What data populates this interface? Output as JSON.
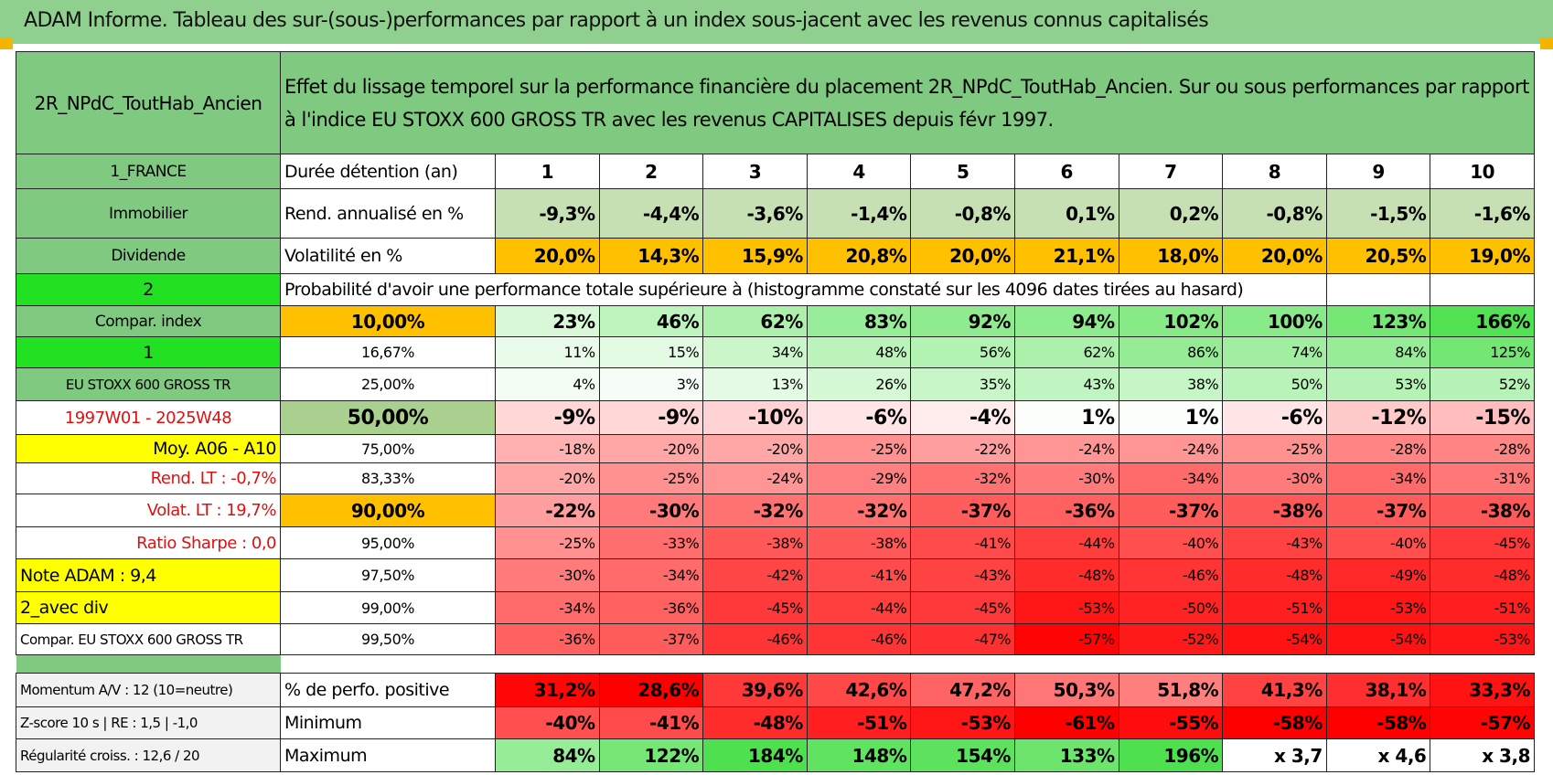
{
  "title": "ADAM Informe. Tableau des sur-(sous-)performances par rapport à un index sous-jacent avec les revenus connus capitalisés",
  "header": {
    "fund": "2R_NPdC_ToutHab_Ancien",
    "description": "Effet du lissage temporel sur la performance financière du placement 2R_NPdC_ToutHab_Ancien. Sur ou sous performances par rapport à l'indice EU STOXX 600 GROSS TR avec les revenus CAPITALISES depuis févr 1997."
  },
  "side": [
    "1_FRANCE",
    "Immobilier",
    "Dividende",
    "2",
    "Compar. index",
    "1",
    "EU STOXX 600 GROSS TR",
    "1997W01 - 2025W48",
    "Moy. A06 - A10",
    "Rend. LT :    -0,7%",
    "Volat. LT :   19,7%",
    "Ratio Sharpe :    0,0",
    "Note ADAM : 9,4",
    "2_avec div",
    "Compar. EU STOXX 600 GROSS TR"
  ],
  "stats": [
    {
      "label": "Durée détention (an)",
      "values": [
        "1",
        "2",
        "3",
        "4",
        "5",
        "6",
        "7",
        "8",
        "9",
        "10"
      ]
    },
    {
      "label": "Rend. annualisé en %",
      "values": [
        "-9,3%",
        "-4,4%",
        "-3,6%",
        "-1,4%",
        "-0,8%",
        "0,1%",
        "0,2%",
        "-0,8%",
        "-1,5%",
        "-1,6%"
      ]
    },
    {
      "label": "Volatilité en %",
      "values": [
        "20,0%",
        "14,3%",
        "15,9%",
        "20,8%",
        "20,0%",
        "21,1%",
        "18,0%",
        "20,0%",
        "20,5%",
        "19,0%"
      ]
    }
  ],
  "probability_title": "Probabilité d'avoir une performance totale supérieure à (histogramme constaté sur les 4096 dates tirées au hasard)",
  "quantiles": [
    {
      "label": "10,00%",
      "values": [
        "23%",
        "46%",
        "62%",
        "83%",
        "92%",
        "94%",
        "102%",
        "100%",
        "123%",
        "166%"
      ]
    },
    {
      "label": "16,67%",
      "values": [
        "11%",
        "15%",
        "34%",
        "48%",
        "56%",
        "62%",
        "86%",
        "74%",
        "84%",
        "125%"
      ]
    },
    {
      "label": "25,00%",
      "values": [
        "4%",
        "3%",
        "13%",
        "26%",
        "35%",
        "43%",
        "38%",
        "50%",
        "53%",
        "52%"
      ]
    },
    {
      "label": "50,00%",
      "values": [
        "-9%",
        "-9%",
        "-10%",
        "-6%",
        "-4%",
        "1%",
        "1%",
        "-6%",
        "-12%",
        "-15%"
      ]
    },
    {
      "label": "75,00%",
      "values": [
        "-18%",
        "-20%",
        "-20%",
        "-25%",
        "-22%",
        "-24%",
        "-24%",
        "-25%",
        "-28%",
        "-28%"
      ]
    },
    {
      "label": "83,33%",
      "values": [
        "-20%",
        "-25%",
        "-24%",
        "-29%",
        "-32%",
        "-30%",
        "-34%",
        "-30%",
        "-34%",
        "-31%"
      ]
    },
    {
      "label": "90,00%",
      "values": [
        "-22%",
        "-30%",
        "-32%",
        "-32%",
        "-37%",
        "-36%",
        "-37%",
        "-38%",
        "-37%",
        "-38%"
      ]
    },
    {
      "label": "95,00%",
      "values": [
        "-25%",
        "-33%",
        "-38%",
        "-38%",
        "-41%",
        "-44%",
        "-40%",
        "-43%",
        "-40%",
        "-45%"
      ]
    },
    {
      "label": "97,50%",
      "values": [
        "-30%",
        "-34%",
        "-42%",
        "-41%",
        "-43%",
        "-48%",
        "-46%",
        "-48%",
        "-49%",
        "-48%"
      ]
    },
    {
      "label": "99,00%",
      "values": [
        "-34%",
        "-36%",
        "-45%",
        "-44%",
        "-45%",
        "-53%",
        "-50%",
        "-51%",
        "-53%",
        "-51%"
      ]
    },
    {
      "label": "99,50%",
      "values": [
        "-36%",
        "-37%",
        "-46%",
        "-46%",
        "-47%",
        "-57%",
        "-52%",
        "-54%",
        "-54%",
        "-53%"
      ]
    }
  ],
  "bottom": [
    {
      "side": "Momentum A/V : 12 (10=neutre)",
      "label": "% de perfo. positive",
      "values": [
        "31,2%",
        "28,6%",
        "39,6%",
        "42,6%",
        "47,2%",
        "50,3%",
        "51,8%",
        "41,3%",
        "38,1%",
        "33,3%"
      ]
    },
    {
      "side": "Z-score 10 s | RE : 1,5 | -1,0",
      "label": "Minimum",
      "values": [
        "-40%",
        "-41%",
        "-48%",
        "-51%",
        "-53%",
        "-61%",
        "-55%",
        "-58%",
        "-58%",
        "-57%"
      ]
    },
    {
      "side": "Régularité croiss. : 12,6 / 20",
      "label": "Maximum",
      "values": [
        "84%",
        "122%",
        "184%",
        "148%",
        "154%",
        "133%",
        "196%",
        "x 3,7",
        "x 4,6",
        "x 3,8"
      ]
    }
  ]
}
